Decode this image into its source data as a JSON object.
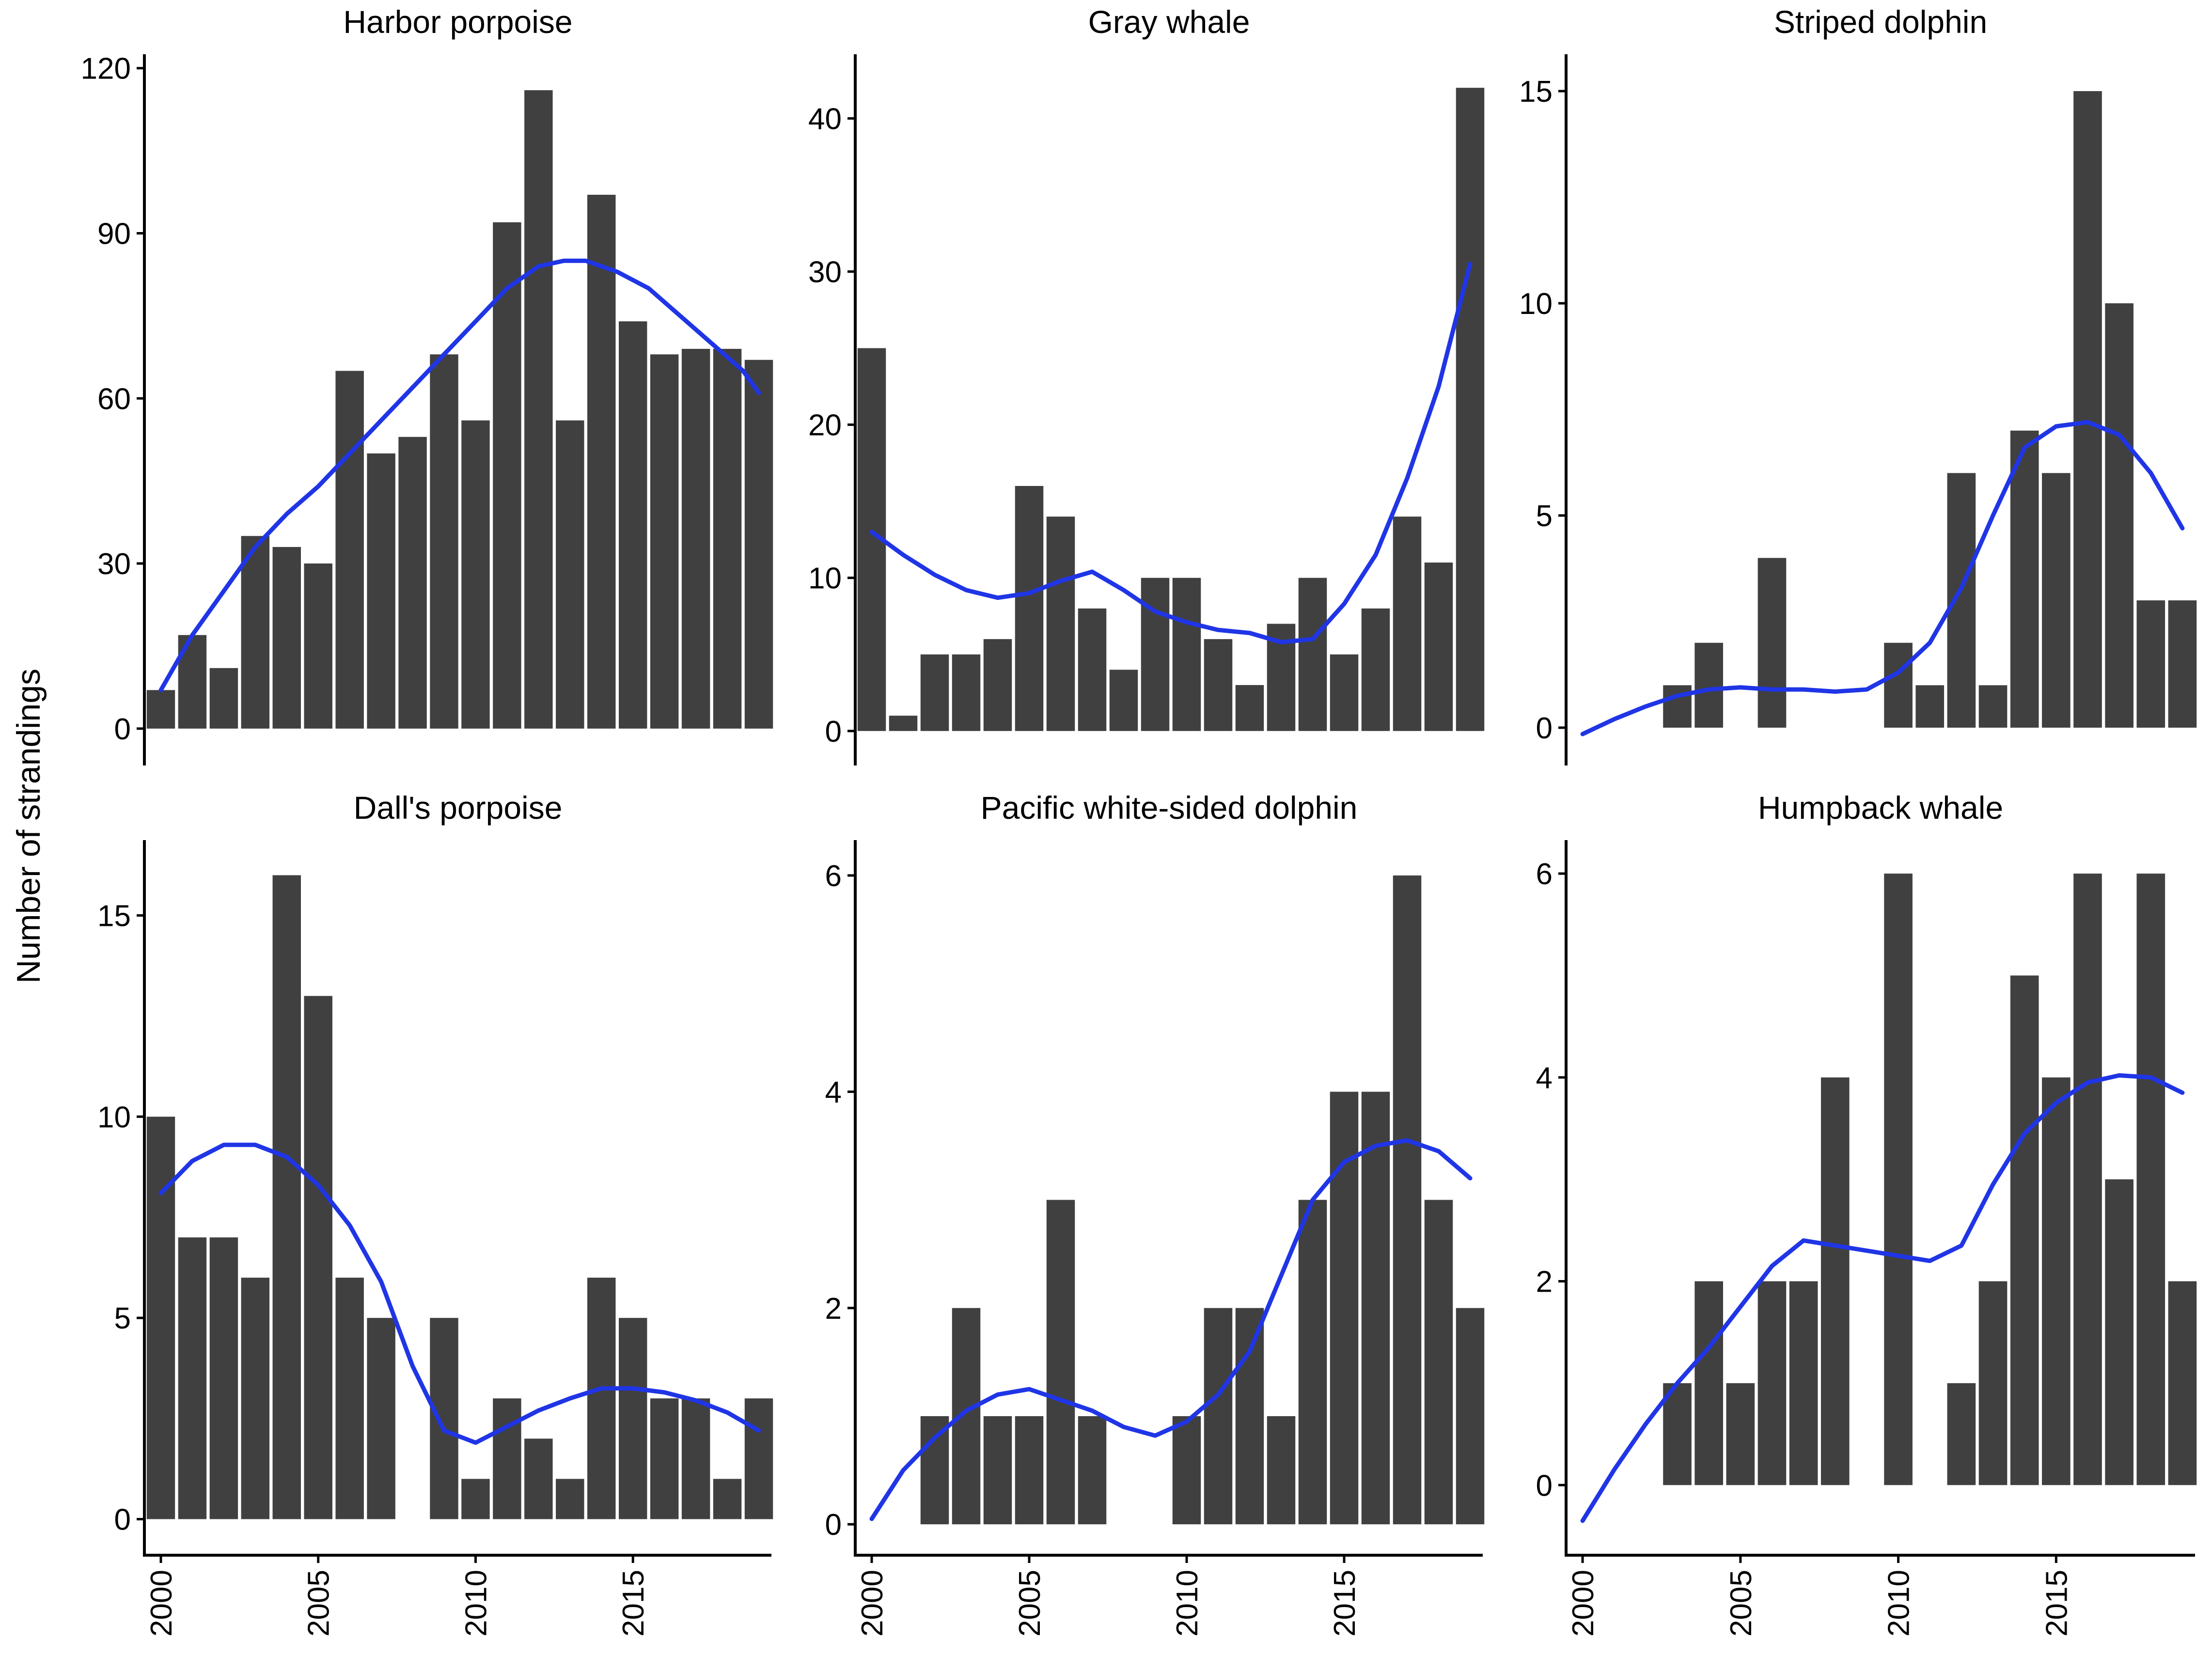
{
  "figure": {
    "y_axis_title": "Number of strandings",
    "bar_color": "#404040",
    "smooth_color": "#1f35e6"
  },
  "chart_data": [
    {
      "type": "bar",
      "title": "Harbor porpoise",
      "xlabel": "",
      "ylabel": "Number of strandings",
      "x": [
        2000,
        2001,
        2002,
        2003,
        2004,
        2005,
        2006,
        2007,
        2008,
        2009,
        2010,
        2011,
        2012,
        2013,
        2014,
        2015,
        2016,
        2017,
        2018,
        2019
      ],
      "values": [
        7,
        17,
        11,
        35,
        33,
        30,
        65,
        50,
        53,
        68,
        56,
        92,
        116,
        56,
        97,
        74,
        68,
        69,
        69,
        67
      ],
      "xlim": [
        1999.6,
        2019.4
      ],
      "ylim": [
        -6,
        122
      ],
      "x_ticks": [
        2000,
        2005,
        2010,
        2015
      ],
      "y_ticks": [
        0,
        30,
        60,
        90,
        120
      ],
      "smooth": {
        "x": [
          2000,
          2001,
          2002,
          2003,
          2004,
          2005,
          2006,
          2007,
          2008,
          2009,
          2010,
          2011,
          2012,
          2012.8,
          2013.5,
          2014.5,
          2015.5,
          2016.5,
          2017.5,
          2018.5,
          2019
        ],
        "y": [
          7,
          17,
          25,
          33,
          39,
          44,
          50,
          56,
          62,
          68,
          74,
          80,
          84,
          85,
          85,
          83,
          80,
          75,
          70,
          65,
          61
        ]
      }
    },
    {
      "type": "bar",
      "title": "Gray whale",
      "xlabel": "",
      "ylabel": "Number of strandings",
      "x": [
        2000,
        2001,
        2002,
        2003,
        2004,
        2005,
        2006,
        2007,
        2008,
        2009,
        2010,
        2011,
        2012,
        2013,
        2014,
        2015,
        2016,
        2017,
        2018,
        2019
      ],
      "values": [
        25,
        1,
        5,
        5,
        6,
        16,
        14,
        8,
        4,
        10,
        10,
        6,
        3,
        7,
        10,
        5,
        8,
        14,
        11,
        42
      ],
      "xlim": [
        1999.6,
        2019.4
      ],
      "ylim": [
        -2,
        44
      ],
      "x_ticks": [
        2000,
        2005,
        2010,
        2015
      ],
      "y_ticks": [
        0,
        10,
        20,
        30,
        40
      ],
      "smooth": {
        "x": [
          2000,
          2001,
          2002,
          2003,
          2004,
          2005,
          2006,
          2007,
          2008,
          2009,
          2010,
          2011,
          2012,
          2013,
          2014,
          2015,
          2016,
          2017,
          2018,
          2019
        ],
        "y": [
          13,
          11.5,
          10.2,
          9.2,
          8.7,
          9,
          9.8,
          10.4,
          9.2,
          7.8,
          7.1,
          6.6,
          6.4,
          5.8,
          6,
          8.3,
          11.5,
          16.5,
          22.5,
          30.5
        ]
      }
    },
    {
      "type": "bar",
      "title": "Striped dolphin",
      "xlabel": "",
      "ylabel": "Number of strandings",
      "x": [
        2000,
        2001,
        2002,
        2003,
        2004,
        2005,
        2006,
        2007,
        2008,
        2009,
        2010,
        2011,
        2012,
        2013,
        2014,
        2015,
        2016,
        2017,
        2018,
        2019
      ],
      "values": [
        0,
        0,
        0,
        1,
        2,
        0,
        4,
        0,
        0,
        0,
        2,
        1,
        6,
        1,
        7,
        6,
        15,
        10,
        3,
        3
      ],
      "xlim": [
        1999.6,
        2019.4
      ],
      "ylim": [
        -0.8,
        15.8
      ],
      "x_ticks": [
        2000,
        2005,
        2010,
        2015
      ],
      "y_ticks": [
        0,
        5,
        10,
        15
      ],
      "smooth": {
        "x": [
          2000,
          2001,
          2002,
          2003,
          2004,
          2005,
          2006,
          2007,
          2008,
          2009,
          2010,
          2011,
          2012,
          2013,
          2014,
          2015,
          2016,
          2017,
          2018,
          2019
        ],
        "y": [
          -0.15,
          0.2,
          0.5,
          0.75,
          0.9,
          0.95,
          0.9,
          0.9,
          0.85,
          0.9,
          1.3,
          2,
          3.3,
          5,
          6.6,
          7.1,
          7.2,
          6.9,
          6,
          4.7
        ]
      }
    },
    {
      "type": "bar",
      "title": "Dall's porpoise",
      "xlabel": "",
      "ylabel": "Number of strandings",
      "x": [
        2000,
        2001,
        2002,
        2003,
        2004,
        2005,
        2006,
        2007,
        2008,
        2009,
        2010,
        2011,
        2012,
        2013,
        2014,
        2015,
        2016,
        2017,
        2018,
        2019
      ],
      "values": [
        10,
        7,
        7,
        6,
        16,
        13,
        6,
        5,
        0,
        5,
        1,
        3,
        2,
        1,
        6,
        5,
        3,
        3,
        1,
        3
      ],
      "xlim": [
        1999.6,
        2019.4
      ],
      "ylim": [
        -0.8,
        16.8
      ],
      "x_ticks": [
        2000,
        2005,
        2010,
        2015
      ],
      "y_ticks": [
        0,
        5,
        10,
        15
      ],
      "smooth": {
        "x": [
          2000,
          2001,
          2002,
          2003,
          2004,
          2005,
          2006,
          2007,
          2008,
          2009,
          2010,
          2011,
          2012,
          2013,
          2014,
          2015,
          2016,
          2017,
          2018,
          2019
        ],
        "y": [
          8.1,
          8.9,
          9.3,
          9.3,
          9.0,
          8.3,
          7.3,
          5.9,
          3.8,
          2.2,
          1.9,
          2.3,
          2.7,
          3.0,
          3.25,
          3.25,
          3.15,
          2.95,
          2.65,
          2.2
        ]
      }
    },
    {
      "type": "bar",
      "title": "Pacific white-sided dolphin",
      "xlabel": "",
      "ylabel": "Number of strandings",
      "x": [
        2000,
        2001,
        2002,
        2003,
        2004,
        2005,
        2006,
        2007,
        2008,
        2009,
        2010,
        2011,
        2012,
        2013,
        2014,
        2015,
        2016,
        2017,
        2018,
        2019
      ],
      "values": [
        0,
        0,
        1,
        2,
        1,
        1,
        3,
        1,
        0,
        0,
        1,
        2,
        2,
        1,
        3,
        4,
        4,
        6,
        3,
        2
      ],
      "xlim": [
        1999.6,
        2019.4
      ],
      "ylim": [
        -0.25,
        6.3
      ],
      "x_ticks": [
        2000,
        2005,
        2010,
        2015
      ],
      "y_ticks": [
        0,
        2,
        4,
        6
      ],
      "smooth": {
        "x": [
          2000,
          2001,
          2002,
          2003,
          2004,
          2005,
          2006,
          2007,
          2008,
          2009,
          2010,
          2011,
          2012,
          2013,
          2014,
          2015,
          2016,
          2017,
          2018,
          2019
        ],
        "y": [
          0.05,
          0.5,
          0.8,
          1.05,
          1.2,
          1.25,
          1.15,
          1.05,
          0.9,
          0.82,
          0.95,
          1.2,
          1.6,
          2.3,
          3.0,
          3.35,
          3.5,
          3.55,
          3.45,
          3.2
        ]
      }
    },
    {
      "type": "bar",
      "title": "Humpback whale",
      "xlabel": "",
      "ylabel": "Number of strandings",
      "x": [
        2000,
        2001,
        2002,
        2003,
        2004,
        2005,
        2006,
        2007,
        2008,
        2009,
        2010,
        2011,
        2012,
        2013,
        2014,
        2015,
        2016,
        2017,
        2018,
        2019
      ],
      "values": [
        0,
        0,
        0,
        1,
        2,
        1,
        2,
        2,
        4,
        0,
        6,
        0,
        1,
        2,
        5,
        4,
        6,
        3,
        6,
        2
      ],
      "xlim": [
        1999.6,
        2019.4
      ],
      "ylim": [
        -0.65,
        6.3
      ],
      "x_ticks": [
        2000,
        2005,
        2010,
        2015
      ],
      "y_ticks": [
        0,
        2,
        4,
        6
      ],
      "smooth": {
        "x": [
          2000,
          2001,
          2002,
          2003,
          2004,
          2005,
          2006,
          2007,
          2008,
          2009,
          2010,
          2011,
          2012,
          2013,
          2014,
          2015,
          2016,
          2017,
          2018,
          2019
        ],
        "y": [
          -0.35,
          0.15,
          0.6,
          1.0,
          1.35,
          1.75,
          2.15,
          2.4,
          2.35,
          2.3,
          2.25,
          2.2,
          2.35,
          2.95,
          3.45,
          3.75,
          3.95,
          4.02,
          4.0,
          3.85
        ]
      }
    }
  ]
}
